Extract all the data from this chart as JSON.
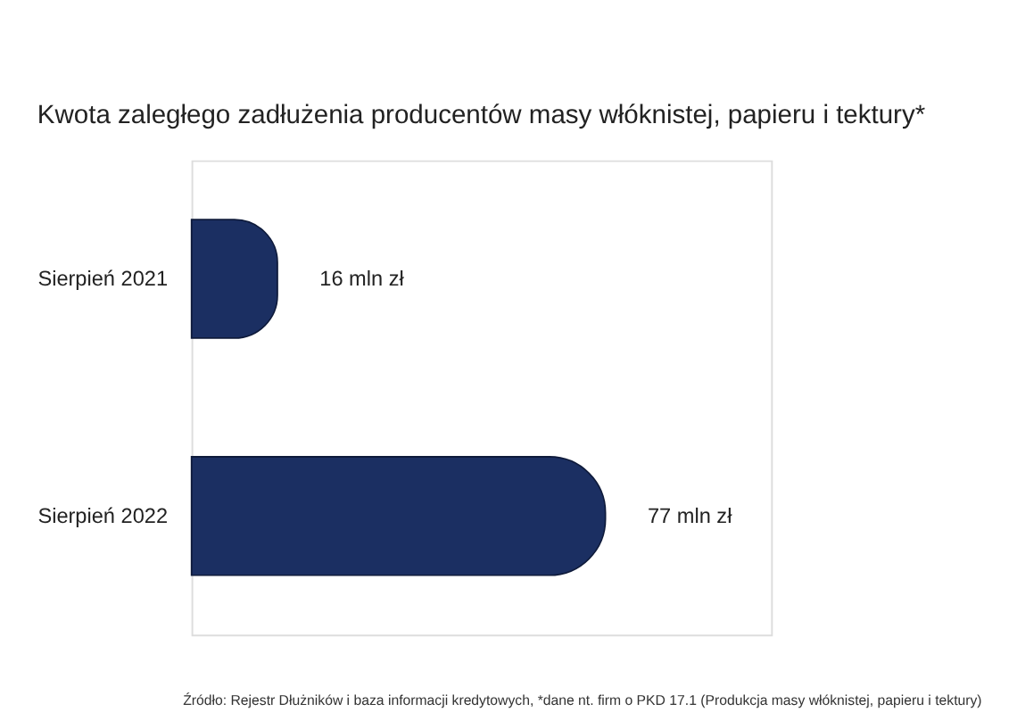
{
  "chart_data": {
    "type": "bar",
    "orientation": "horizontal",
    "title": "Kwota zaległego zadłużenia producentów masy włóknistej, papieru i tektury*",
    "categories": [
      "Sierpień 2021",
      "Sierpień 2022"
    ],
    "values": [
      16,
      77
    ],
    "color": "#1b2f62",
    "value_labels": [
      "16 mln zł",
      "77 mln zł"
    ],
    "annotations": [
      "Źródło: Rejestr Dłużników i baza informacji kredytowych, *dane nt. firm o PKD 17.1  (Produkcja masy włóknistej, papieru i tektury)"
    ]
  }
}
